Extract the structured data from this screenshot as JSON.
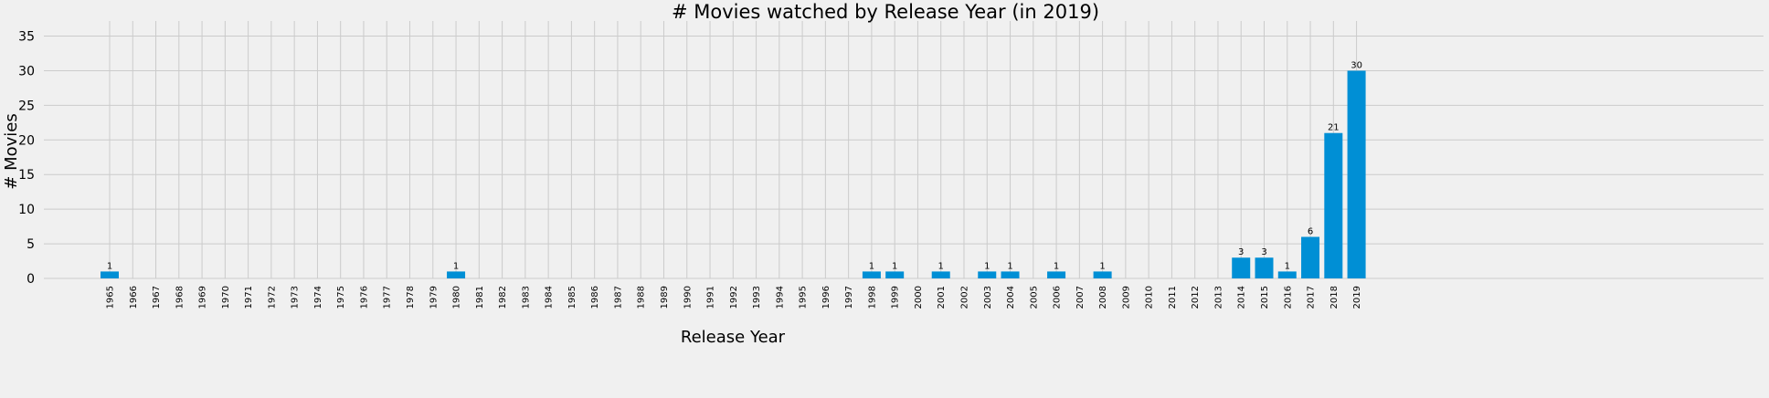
{
  "chart_data": {
    "type": "bar",
    "title": "# Movies watched by Release Year (in 2019)",
    "xlabel": "Release Year",
    "ylabel": "# Movies",
    "ylim": [
      0,
      38.5
    ],
    "yticks": [
      0,
      5,
      10,
      15,
      20,
      25,
      30,
      35
    ],
    "grid": true,
    "bar_color": "#008fd5",
    "categories": [
      "1965",
      "1966",
      "1967",
      "1968",
      "1969",
      "1970",
      "1971",
      "1972",
      "1973",
      "1974",
      "1975",
      "1976",
      "1977",
      "1978",
      "1979",
      "1980",
      "1981",
      "1982",
      "1983",
      "1984",
      "1985",
      "1986",
      "1987",
      "1988",
      "1989",
      "1990",
      "1991",
      "1992",
      "1993",
      "1994",
      "1995",
      "1996",
      "1997",
      "1998",
      "1999",
      "2000",
      "2001",
      "2002",
      "2003",
      "2004",
      "2005",
      "2006",
      "2007",
      "2008",
      "2009",
      "2010",
      "2011",
      "2012",
      "2013",
      "2014",
      "2015",
      "2016",
      "2017",
      "2018",
      "2019"
    ],
    "values": [
      1,
      0,
      0,
      0,
      0,
      0,
      0,
      0,
      0,
      0,
      0,
      0,
      0,
      0,
      0,
      1,
      0,
      0,
      0,
      0,
      0,
      0,
      0,
      0,
      0,
      0,
      0,
      0,
      0,
      0,
      0,
      0,
      0,
      1,
      1,
      0,
      1,
      0,
      1,
      1,
      0,
      1,
      0,
      1,
      0,
      0,
      0,
      0,
      0,
      3,
      3,
      1,
      6,
      21,
      30
    ]
  }
}
